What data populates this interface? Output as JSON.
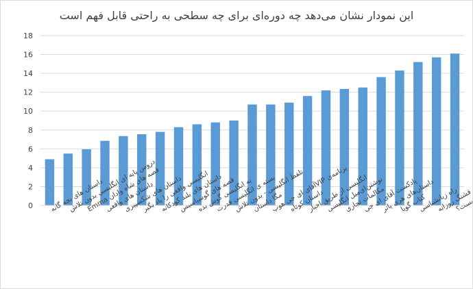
{
  "chart_data": {
    "type": "bar",
    "title": "این نمودار نشان می‌دهد چه دوره‌ای برای چه سطحی به راحتی قابل فهم است",
    "xlabel": "",
    "ylabel": "",
    "ylim": [
      0,
      18
    ],
    "yticks": [
      0,
      2,
      4,
      6,
      8,
      10,
      12,
      14,
      16,
      18
    ],
    "grid": true,
    "legend": "none",
    "bar_color": "#5b9bd5",
    "categories": [
      "داستان های بچه گانه",
      "دروس پایه ای انگلیسی بدون تلاش",
      "قصه های شاه‌ وادان Emma",
      "داستان های واقعی",
      "داستان های شکسپیری",
      "انگلیسی واقعی را یاد بگیر",
      "داستان های بلند کودکانه",
      "قصه های گوسیاسیس",
      "به انگلیسی گوش بده",
      "بسته ی انگلیسی قدرت",
      "تلفظ انگلیسی - بدون تلاش",
      "مگا داستان",
      "برنامه‌ی VIPآقای ای جی هوپ",
      "داستان کوتاه",
      "انگلیسی از طریق اخبار",
      "نوشتن‌ای‌میل انگلیسی",
      "مکالمات تجاری",
      "پادکست آقای ای جی",
      "داستان‌های هری پاتر",
      "کتاب گویا",
      "راه زبانشناسی",
      "چیز های قشنگ روزانه",
      "مشکل جهان چیست؟"
    ],
    "values": [
      4.9,
      5.5,
      5.95,
      6.85,
      7.35,
      7.55,
      7.8,
      8.3,
      8.6,
      8.8,
      9.0,
      10.7,
      10.7,
      10.9,
      11.6,
      12.2,
      12.35,
      12.5,
      13.6,
      14.3,
      15.2,
      15.7,
      16.1
    ]
  }
}
